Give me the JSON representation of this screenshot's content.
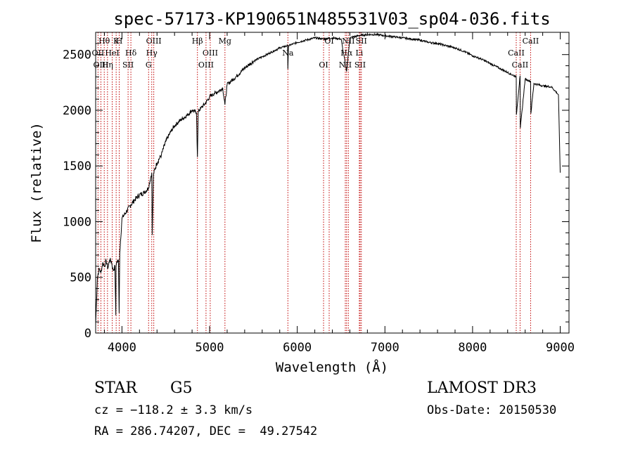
{
  "chart_data": {
    "type": "line",
    "title": "spec-57173-KP190651N485531V03_sp04-036.fits",
    "xlabel": "Wavelength (Å)",
    "ylabel": "Flux (relative)",
    "xlim": [
      3700,
      9100
    ],
    "ylim": [
      0,
      2700
    ],
    "xticks": [
      4000,
      5000,
      6000,
      7000,
      8000,
      9000
    ],
    "yticks": [
      0,
      500,
      1000,
      1500,
      2000,
      2500
    ],
    "series": [
      {
        "x": [
          3700,
          3720,
          3740,
          3760,
          3780,
          3800,
          3820,
          3840,
          3860,
          3880,
          3900,
          3920,
          3930,
          3933,
          3940,
          3960,
          3968,
          3975,
          4000,
          4050,
          4100,
          4150,
          4200,
          4250,
          4300,
          4340,
          4345,
          4360,
          4400,
          4450,
          4500,
          4550,
          4600,
          4650,
          4700,
          4750,
          4800,
          4850,
          4861,
          4870,
          4900,
          4950,
          5000,
          5050,
          5100,
          5150,
          5175,
          5200,
          5300,
          5400,
          5500,
          5600,
          5700,
          5800,
          5890,
          5893,
          5900,
          6000,
          6100,
          6200,
          6300,
          6400,
          6500,
          6563,
          6600,
          6700,
          6800,
          6900,
          7000,
          7100,
          7200,
          7300,
          7400,
          7500,
          7600,
          7700,
          7800,
          7900,
          8000,
          8100,
          8200,
          8300,
          8400,
          8498,
          8500,
          8542,
          8545,
          8600,
          8662,
          8665,
          8700,
          8800,
          8900,
          8980,
          9000
        ],
        "y": [
          80,
          500,
          580,
          540,
          630,
          600,
          650,
          580,
          660,
          640,
          560,
          600,
          160,
          600,
          640,
          650,
          180,
          720,
          1030,
          1090,
          1150,
          1200,
          1240,
          1260,
          1300,
          1440,
          880,
          1430,
          1530,
          1600,
          1720,
          1800,
          1860,
          1900,
          1930,
          1960,
          2000,
          1980,
          1580,
          1990,
          2020,
          2060,
          2120,
          2150,
          2170,
          2200,
          2050,
          2230,
          2300,
          2380,
          2440,
          2480,
          2520,
          2560,
          2580,
          2370,
          2580,
          2610,
          2630,
          2650,
          2640,
          2650,
          2640,
          2350,
          2650,
          2670,
          2680,
          2680,
          2670,
          2660,
          2650,
          2640,
          2630,
          2610,
          2600,
          2580,
          2560,
          2530,
          2490,
          2460,
          2420,
          2380,
          2340,
          2300,
          1960,
          2310,
          1840,
          2280,
          2260,
          1970,
          2240,
          2220,
          2210,
          2140,
          1440
        ]
      }
    ],
    "lines": [
      {
        "label": "Hθ",
        "x": 3798
      },
      {
        "label": "OII",
        "x": 3727
      },
      {
        "label": "OIII",
        "x": 3760
      },
      {
        "label": "K",
        "x": 3934
      },
      {
        "label": "HeI",
        "x": 3889
      },
      {
        "label": "Hη",
        "x": 3835
      },
      {
        "label": "H",
        "x": 3969
      },
      {
        "label": "Hδ",
        "x": 4102
      },
      {
        "label": "SII",
        "x": 4070
      },
      {
        "label": "OIII",
        "x": 4363
      },
      {
        "label": "Hγ",
        "x": 4340
      },
      {
        "label": "G",
        "x": 4304
      },
      {
        "label": "Hβ",
        "x": 4861
      },
      {
        "label": "OIII",
        "x": 5007
      },
      {
        "label": "OIII",
        "x": 4959
      },
      {
        "label": "Mg",
        "x": 5175
      },
      {
        "label": "Na",
        "x": 5893
      },
      {
        "label": "OI",
        "x": 6300
      },
      {
        "label": "OI",
        "x": 6364
      },
      {
        "label": "Hα",
        "x": 6563
      },
      {
        "label": "NII",
        "x": 6548
      },
      {
        "label": "NII",
        "x": 6583
      },
      {
        "label": "Li",
        "x": 6708
      },
      {
        "label": "SII",
        "x": 6717
      },
      {
        "label": "SII",
        "x": 6731
      },
      {
        "label": "CaII",
        "x": 8498
      },
      {
        "label": "CaII",
        "x": 8542
      },
      {
        "label": "CaII",
        "x": 8662
      }
    ]
  },
  "info": {
    "object_class": "STAR",
    "subclass": "G5",
    "survey": "LAMOST DR3",
    "cz": "cz = −118.2 ± 3.3 km/s",
    "obs_date": "Obs-Date: 20150530",
    "coords": "RA = 286.74207, DEC =  49.27542"
  }
}
